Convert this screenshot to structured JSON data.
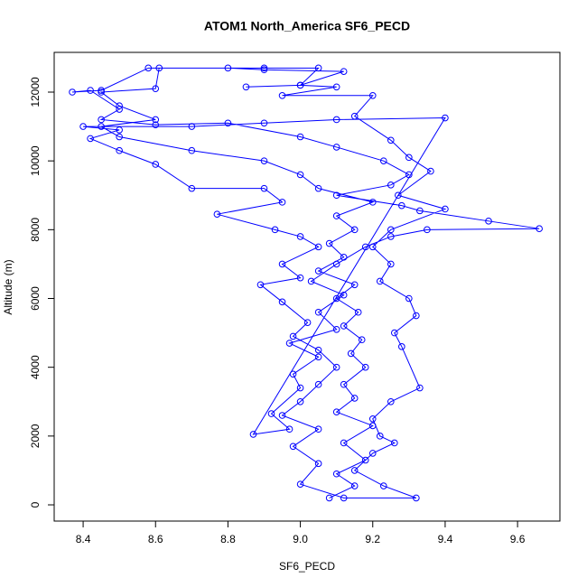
{
  "chart_data": {
    "type": "scatter",
    "title": "ATOM1 North_America SF6_PECD",
    "x_label": "SF6_PECD",
    "y_label": "Altitude (m)",
    "color": "#0000ff",
    "connect": true,
    "x": [
      9.08,
      9.15,
      9.1,
      9.18,
      9.12,
      9.2,
      9.1,
      9.15,
      9.12,
      9.18,
      9.14,
      9.17,
      9.12,
      9.16,
      9.1,
      9.15,
      9.05,
      9.12,
      9.08,
      9.15,
      9.1,
      9.2,
      9.05,
      9.0,
      8.9,
      8.7,
      8.5,
      8.45,
      8.6,
      8.5,
      8.45,
      8.6,
      8.61,
      8.9,
      9.05,
      9.0,
      9.1,
      8.95,
      9.2,
      9.15,
      9.25,
      9.3,
      9.36,
      9.27,
      9.4,
      9.25,
      9.2,
      9.25,
      9.22,
      9.3,
      9.32,
      9.26,
      9.28,
      9.33,
      9.25,
      9.2,
      9.22,
      9.26,
      9.2,
      9.15,
      9.23,
      9.32,
      9.12,
      9.0,
      9.05,
      8.98,
      9.05,
      8.95,
      9.0,
      9.05,
      9.1,
      9.05,
      8.98,
      9.02,
      8.95,
      8.89,
      9.0,
      8.95,
      9.05,
      9.0,
      8.93,
      8.77,
      8.95,
      8.9,
      8.7,
      8.6,
      8.5,
      8.42,
      8.5,
      8.4,
      8.7,
      8.9,
      9.1,
      9.4,
      8.87,
      8.97,
      8.92,
      9.0,
      8.98,
      9.05,
      8.97,
      9.1,
      9.05,
      9.12,
      9.03,
      9.1,
      9.18,
      9.25,
      9.35,
      9.66,
      9.52,
      9.33,
      9.28,
      9.1,
      9.25,
      9.3,
      9.23,
      9.1,
      9.0,
      8.8,
      8.6,
      8.45,
      8.5,
      8.42,
      8.37,
      8.45,
      8.58,
      8.8,
      8.9,
      9.12,
      9.0,
      8.85
    ],
    "values": [
      200,
      550,
      900,
      1300,
      1800,
      2300,
      2700,
      3100,
      3500,
      4000,
      4400,
      4800,
      5200,
      5600,
      6000,
      6400,
      6800,
      7200,
      7600,
      8000,
      8400,
      8800,
      9200,
      9600,
      10000,
      10300,
      10700,
      11000,
      11200,
      11600,
      12000,
      12100,
      12700,
      12700,
      12700,
      12200,
      12150,
      11900,
      11900,
      11300,
      10600,
      10100,
      9700,
      9000,
      8600,
      8000,
      7500,
      7000,
      6500,
      6000,
      5500,
      5000,
      4600,
      3400,
      3000,
      2500,
      2000,
      1800,
      1500,
      1000,
      550,
      200,
      200,
      600,
      1200,
      1700,
      2200,
      2600,
      3000,
      3500,
      4000,
      4500,
      4900,
      5300,
      5900,
      6400,
      6600,
      7000,
      7500,
      7800,
      8000,
      8450,
      8800,
      9200,
      9200,
      9900,
      10300,
      10650,
      10900,
      11000,
      11000,
      11100,
      11200,
      11250,
      2050,
      2200,
      2650,
      3400,
      3800,
      4300,
      4700,
      5100,
      5600,
      6100,
      6500,
      7000,
      7500,
      7800,
      8000,
      8030,
      8250,
      8550,
      8700,
      9000,
      9300,
      9600,
      10000,
      10400,
      10700,
      11100,
      11050,
      11200,
      11500,
      12050,
      12000,
      12050,
      12700,
      12700,
      12650,
      12600,
      12200,
      12150
    ],
    "xlim": [
      8.32,
      9.717
    ],
    "ylim": [
      -472,
      13155
    ],
    "xticks": [
      8.4,
      8.6,
      8.8,
      {
        "value": 9,
        "label": "9.0"
      },
      9.2,
      9.4,
      9.6
    ],
    "yticks": [
      0,
      2000,
      4000,
      6000,
      8000,
      10000,
      12000
    ]
  }
}
